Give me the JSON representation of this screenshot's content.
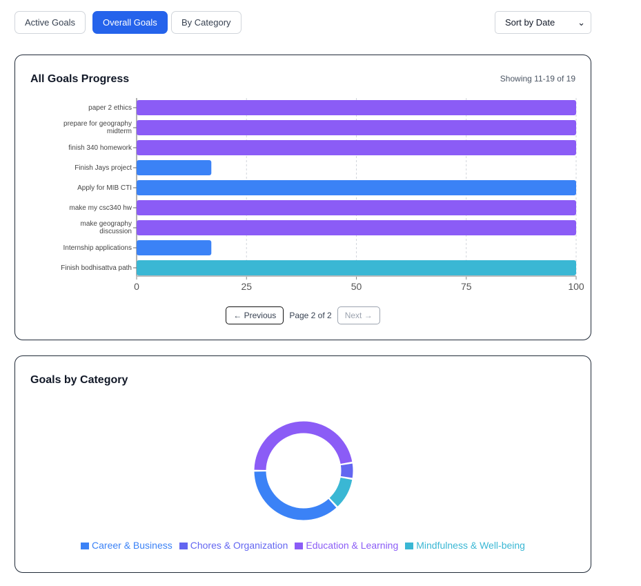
{
  "tabs": [
    {
      "label": "Active Goals",
      "active": false
    },
    {
      "label": "Overall Goals",
      "active": true
    },
    {
      "label": "By Category",
      "active": false
    }
  ],
  "sort": {
    "selected": "Sort by Date"
  },
  "chart_data": [
    {
      "type": "bar",
      "orientation": "horizontal",
      "title": "All Goals Progress",
      "showing": "Showing 11-19 of 19",
      "categories": [
        "paper 2 ethics",
        "prepare for geography midterm",
        "finish 340 homework",
        "Finish Jays project",
        "Apply for MIB CTI",
        "make my csc340 hw",
        "make geography discussion",
        "Internship applications",
        "Finish bodhisattva path"
      ],
      "values": [
        100,
        100,
        100,
        17,
        100,
        100,
        100,
        17,
        100
      ],
      "colors": [
        "#8b5cf6",
        "#8b5cf6",
        "#8b5cf6",
        "#3b82f6",
        "#3b82f6",
        "#8b5cf6",
        "#8b5cf6",
        "#3b82f6",
        "#3ab7d4"
      ],
      "xlim": [
        0,
        100
      ],
      "xticks": [
        "0",
        "25",
        "50",
        "75",
        "100"
      ],
      "grid": "vertical-dashed"
    },
    {
      "type": "pie",
      "donut": true,
      "title": "Goals by Category",
      "legend": "bottom",
      "labels": [
        "Career & Business",
        "Chores & Organization",
        "Education & Learning",
        "Mindfulness & Well-being"
      ],
      "values": [
        7,
        1,
        9,
        2
      ],
      "colors": [
        "#3b82f6",
        "#6366f1",
        "#8b5cf6",
        "#3ab7d4"
      ]
    }
  ],
  "pager": {
    "prev": "← Previous",
    "page": "Page 2 of 2",
    "next": "Next →"
  }
}
